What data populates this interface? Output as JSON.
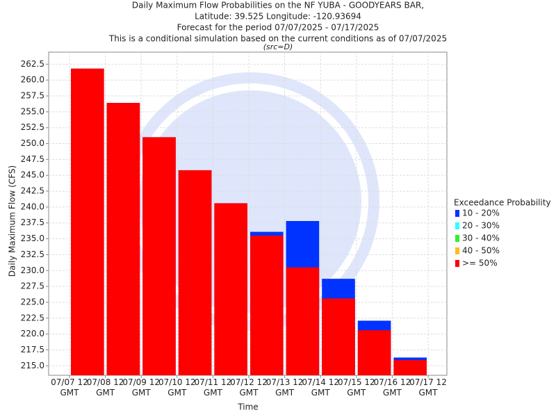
{
  "chart_data": {
    "type": "bar",
    "title": "Daily Maximum Flow Probabilities on the NF YUBA - GOODYEARS BAR,",
    "subtitle_lines": [
      "Latitude: 39.525 Longitude: -120.93694",
      "Forecast for the period 07/07/2025 - 07/17/2025",
      "This is a conditional simulation based on the current conditions as of 07/07/2025"
    ],
    "source": "(src=D)",
    "x_label": "Time",
    "y_label": "Daily Maximum Flow (CFS)",
    "legend_title": "Exceedance Probability",
    "categories": [
      "07/07 12 GMT",
      "07/08 12 GMT",
      "07/09 12 GMT",
      "07/10 12 GMT",
      "07/11 12 GMT",
      "07/12 12 GMT",
      "07/13 12 GMT",
      "07/14 12 GMT",
      "07/15 12 GMT",
      "07/16 12 GMT",
      "07/17 12 GMT"
    ],
    "series": [
      {
        "name": "10 - 20%",
        "color": "#0033ff",
        "values": [
          261.8,
          256.4,
          251.0,
          245.8,
          240.6,
          236.1,
          237.8,
          228.7,
          222.1,
          216.3,
          null
        ]
      },
      {
        "name": "20 - 30%",
        "color": "#33ffff",
        "values": [
          null,
          null,
          null,
          null,
          null,
          null,
          null,
          null,
          null,
          null,
          null
        ]
      },
      {
        "name": "30 - 40%",
        "color": "#33ee33",
        "values": [
          null,
          null,
          null,
          null,
          null,
          null,
          null,
          null,
          null,
          null,
          null
        ]
      },
      {
        "name": "40 - 50%",
        "color": "#ffbb22",
        "values": [
          null,
          null,
          null,
          null,
          null,
          null,
          null,
          null,
          null,
          null,
          null
        ]
      },
      {
        "name": ">= 50%",
        "color": "#ff0000",
        "values": [
          261.8,
          256.4,
          251.0,
          245.8,
          240.6,
          235.5,
          230.5,
          225.6,
          220.6,
          215.9,
          null
        ]
      }
    ],
    "ylim": [
      213.5,
      264.4
    ],
    "yticks": [
      {
        "value": 215,
        "label": "215.0"
      },
      {
        "value": 217.5,
        "label": "217.5"
      },
      {
        "value": 220,
        "label": "220.0"
      },
      {
        "value": 222.5,
        "label": "222.5"
      },
      {
        "value": 225,
        "label": "225.0"
      },
      {
        "value": 227.5,
        "label": "227.5"
      },
      {
        "value": 230,
        "label": "230.0"
      },
      {
        "value": 232.5,
        "label": "232.5"
      },
      {
        "value": 235,
        "label": "235.0"
      },
      {
        "value": 237.5,
        "label": "237.5"
      },
      {
        "value": 240,
        "label": "240.0"
      },
      {
        "value": 242.5,
        "label": "242.5"
      },
      {
        "value": 245,
        "label": "245.0"
      },
      {
        "value": 247.5,
        "label": "247.5"
      },
      {
        "value": 250,
        "label": "250.0"
      },
      {
        "value": 252.5,
        "label": "252.5"
      },
      {
        "value": 255,
        "label": "255.0"
      },
      {
        "value": 257.5,
        "label": "257.5"
      },
      {
        "value": 260,
        "label": "260.0"
      },
      {
        "value": 262.5,
        "label": "262.5"
      }
    ],
    "grid": true
  }
}
